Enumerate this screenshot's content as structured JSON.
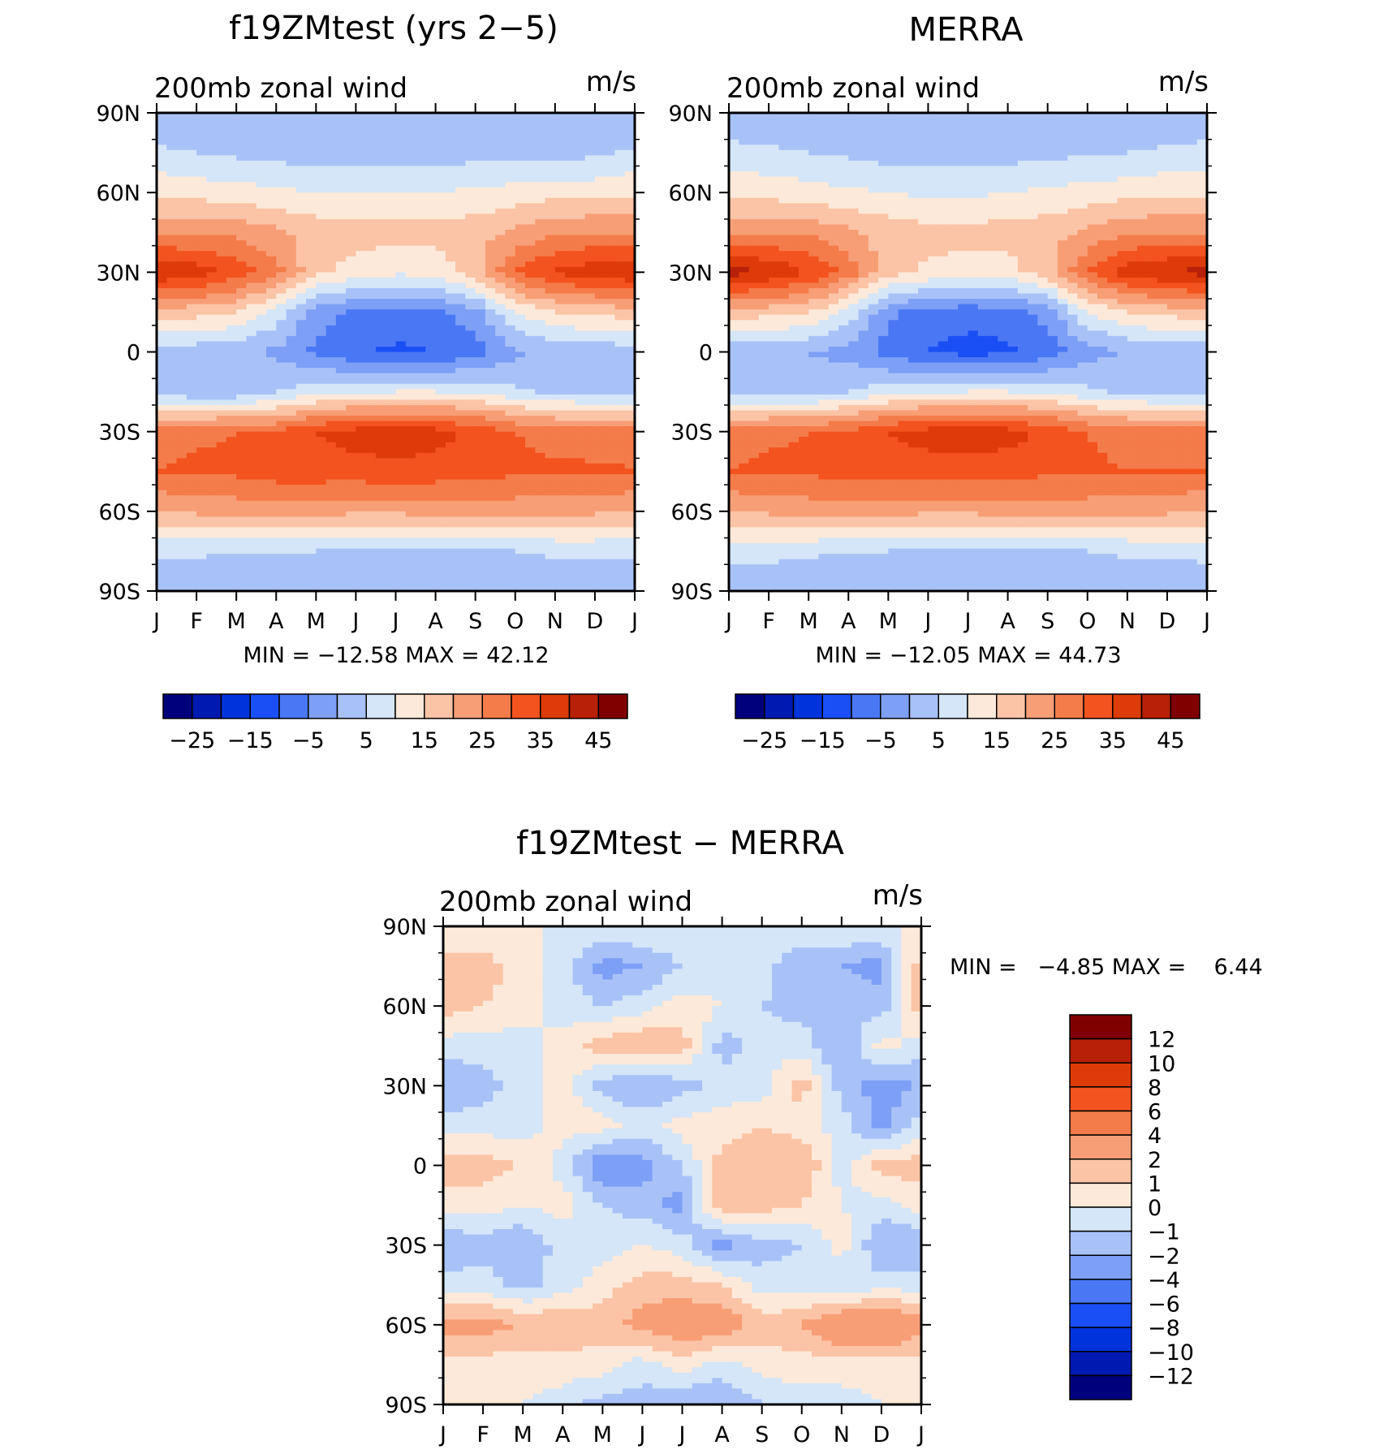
{
  "colors": {
    "seq": [
      "#00007d",
      "#0019b0",
      "#0033dc",
      "#1a4ff5",
      "#4a78f5",
      "#7d9ff5",
      "#a8c2f8",
      "#d4e6f8",
      "#fde9d9",
      "#fbc4a6",
      "#f89e76",
      "#f47b4a",
      "#f3531e",
      "#dd3b0a",
      "#b82008",
      "#800000"
    ],
    "diff": [
      "#00007d",
      "#0019b0",
      "#0033dc",
      "#1a4ff5",
      "#4a78f5",
      "#7d9ff5",
      "#a8c2f8",
      "#d4e6f8",
      "#fde9d9",
      "#fbc4a6",
      "#f89e76",
      "#f47b4a",
      "#f3531e",
      "#dd3b0a",
      "#b82008",
      "#800000"
    ]
  },
  "chart_data": [
    {
      "id": "model",
      "type": "heatmap",
      "title": "f19ZMtest (yrs 2−5)",
      "subtitle_left": "200mb zonal wind",
      "subtitle_right": "m/s",
      "x_categories": [
        "J",
        "F",
        "M",
        "A",
        "M",
        "J",
        "J",
        "A",
        "S",
        "O",
        "N",
        "D",
        "J"
      ],
      "y_ticks": [
        "90N",
        "60N",
        "30N",
        "0",
        "30S",
        "60S",
        "90S"
      ],
      "y_range": [
        90,
        -90
      ],
      "min": -12.58,
      "max": 42.12,
      "stats_label": "MIN = −12.58 MAX =   42.12",
      "colorbar_levels": [
        -30,
        -25,
        -20,
        -15,
        -10,
        -5,
        0,
        5,
        10,
        15,
        20,
        25,
        30,
        35,
        40,
        45
      ],
      "colorbar_labels": [
        "−25",
        "−15",
        "−5",
        "5",
        "15",
        "25",
        "35",
        "45"
      ],
      "field": {
        "lat_nodes": [
          90,
          75,
          60,
          45,
          30,
          15,
          0,
          -15,
          -30,
          -45,
          -60,
          -75,
          -90
        ],
        "columns": [
          [
            0,
            6,
            14,
            24,
            40,
            18,
            2,
            2,
            28,
            30,
            20,
            6,
            0
          ],
          [
            0,
            5,
            13,
            24,
            38,
            17,
            2,
            1,
            29,
            31,
            21,
            6,
            0
          ],
          [
            0,
            4,
            12,
            24,
            33,
            15,
            1,
            1,
            30,
            31,
            22,
            5,
            0
          ],
          [
            0,
            3,
            11,
            21,
            27,
            8,
            -1,
            5,
            30,
            33,
            22,
            5,
            0
          ],
          [
            0,
            2,
            10,
            18,
            16,
            -3,
            -6,
            8,
            35,
            33,
            22,
            5,
            0
          ],
          [
            0,
            2,
            10,
            17,
            13,
            -6,
            -9,
            9,
            37,
            33,
            21,
            4,
            0
          ],
          [
            0,
            2,
            10,
            17,
            11,
            -7,
            -11,
            10,
            38,
            34,
            21,
            4,
            0
          ],
          [
            0,
            2,
            10,
            17,
            12,
            -6,
            -10,
            10,
            37,
            33,
            22,
            4,
            0
          ],
          [
            0,
            3,
            11,
            18,
            18,
            -2,
            -7,
            9,
            34,
            32,
            22,
            4,
            0
          ],
          [
            0,
            3,
            12,
            21,
            30,
            10,
            -1,
            6,
            30,
            31,
            22,
            5,
            0
          ],
          [
            0,
            3,
            13,
            24,
            36,
            15,
            1,
            4,
            28,
            31,
            21,
            6,
            0
          ],
          [
            0,
            4,
            13,
            25,
            38,
            16,
            2,
            3,
            27,
            31,
            21,
            6,
            0
          ],
          [
            0,
            6,
            14,
            24,
            40,
            18,
            2,
            2,
            28,
            30,
            20,
            6,
            0
          ]
        ]
      }
    },
    {
      "id": "obs",
      "type": "heatmap",
      "title": "MERRA",
      "subtitle_left": "200mb zonal wind",
      "subtitle_right": "m/s",
      "x_categories": [
        "J",
        "F",
        "M",
        "A",
        "M",
        "J",
        "J",
        "A",
        "S",
        "O",
        "N",
        "D",
        "J"
      ],
      "y_ticks": [
        "90N",
        "60N",
        "30N",
        "0",
        "30S",
        "60S",
        "90S"
      ],
      "y_range": [
        90,
        -90
      ],
      "min": -12.05,
      "max": 44.73,
      "stats_label": "MIN = −12.05 MAX =   44.73",
      "colorbar_levels": [
        -30,
        -25,
        -20,
        -15,
        -10,
        -5,
        0,
        5,
        10,
        15,
        20,
        25,
        30,
        35,
        40,
        45
      ],
      "colorbar_labels": [
        "−25",
        "−15",
        "−5",
        "5",
        "15",
        "25",
        "35",
        "45"
      ],
      "field": {
        "lat_nodes": [
          90,
          75,
          60,
          45,
          30,
          15,
          0,
          -15,
          -30,
          -45,
          -60,
          -75,
          -90
        ],
        "columns": [
          [
            0,
            7,
            14,
            24,
            42,
            18,
            1,
            2,
            28,
            30,
            20,
            7,
            0
          ],
          [
            0,
            6,
            13,
            24,
            40,
            17,
            1,
            2,
            29,
            31,
            21,
            7,
            0
          ],
          [
            0,
            5,
            12,
            24,
            35,
            15,
            0,
            2,
            30,
            31,
            22,
            6,
            0
          ],
          [
            0,
            4,
            11,
            21,
            28,
            8,
            -2,
            5,
            31,
            32,
            22,
            5,
            0
          ],
          [
            0,
            3,
            10,
            18,
            17,
            -4,
            -7,
            8,
            35,
            32,
            22,
            5,
            0
          ],
          [
            0,
            3,
            9,
            17,
            14,
            -7,
            -10,
            9,
            37,
            33,
            21,
            4,
            0
          ],
          [
            0,
            3,
            9,
            17,
            12,
            -8,
            -12,
            10,
            38,
            33,
            21,
            4,
            0
          ],
          [
            0,
            3,
            10,
            17,
            13,
            -7,
            -11,
            10,
            37,
            32,
            22,
            4,
            0
          ],
          [
            0,
            4,
            11,
            18,
            18,
            -3,
            -8,
            9,
            34,
            31,
            22,
            4,
            0
          ],
          [
            0,
            4,
            12,
            21,
            30,
            10,
            -2,
            6,
            30,
            31,
            22,
            5,
            0
          ],
          [
            0,
            5,
            13,
            24,
            38,
            15,
            0,
            4,
            28,
            30,
            21,
            6,
            0
          ],
          [
            0,
            6,
            14,
            25,
            40,
            17,
            1,
            3,
            27,
            30,
            21,
            6,
            0
          ],
          [
            0,
            7,
            14,
            24,
            42,
            18,
            1,
            2,
            28,
            30,
            20,
            7,
            0
          ]
        ]
      }
    },
    {
      "id": "diff",
      "type": "heatmap",
      "title": "f19ZMtest − MERRA",
      "subtitle_left": "200mb zonal wind",
      "subtitle_right": "m/s",
      "x_categories": [
        "J",
        "F",
        "M",
        "A",
        "M",
        "J",
        "J",
        "A",
        "S",
        "O",
        "N",
        "D",
        "J"
      ],
      "y_ticks": [
        "90N",
        "60N",
        "30N",
        "0",
        "30S",
        "60S",
        "90S"
      ],
      "y_range": [
        90,
        -90
      ],
      "min": -4.85,
      "max": 6.44,
      "stats_label": "MIN =   −4.85 MAX =    6.44",
      "colorbar_levels": [
        -14,
        -12,
        -10,
        -8,
        -6,
        -4,
        -2,
        -1,
        0,
        1,
        2,
        4,
        6,
        8,
        10,
        12
      ],
      "colorbar_labels": [
        "12",
        "10",
        "8",
        "6",
        "4",
        "2",
        "1",
        "0",
        "−1",
        "−2",
        "−4",
        "−6",
        "−8",
        "−10",
        "−12"
      ],
      "field": {
        "lat_nodes": [
          90,
          75,
          60,
          45,
          30,
          15,
          0,
          -15,
          -30,
          -45,
          -60,
          -75,
          -90
        ],
        "columns": [
          [
            0,
            1.5,
            1.5,
            -0.5,
            -2,
            -0.5,
            1.5,
            0.5,
            -2,
            -0.5,
            2.5,
            0.5,
            0
          ],
          [
            0,
            1.5,
            1,
            -0.5,
            -1.5,
            -0.5,
            1.5,
            0.5,
            -1.5,
            -0.5,
            2.5,
            0.5,
            0
          ],
          [
            0,
            0.5,
            0.5,
            -0.5,
            -0.5,
            -0.5,
            1,
            0,
            -2,
            -1.5,
            2,
            0.5,
            0
          ],
          [
            0,
            -0.5,
            -0.5,
            0.5,
            0.5,
            0.5,
            -0.5,
            0.5,
            -0.5,
            -0.5,
            2,
            0.5,
            -0.5
          ],
          [
            0,
            -2.5,
            -1,
            1.5,
            -1.5,
            0.5,
            -3,
            -1,
            -0.5,
            0.5,
            1.5,
            0.5,
            -1.5
          ],
          [
            0,
            -2,
            -0.5,
            2,
            -2,
            -0.5,
            -2.5,
            -1.5,
            0,
            1.5,
            2.5,
            -0.5,
            -1.5
          ],
          [
            0,
            -1,
            0.5,
            1.5,
            -1.5,
            0.5,
            -1,
            -2.5,
            -0.5,
            1.5,
            3,
            0.5,
            -2
          ],
          [
            0,
            -0.5,
            0,
            -1.5,
            -0.5,
            0.5,
            1.5,
            2,
            -2.5,
            1,
            3,
            -0.5,
            -2
          ],
          [
            0,
            -0.5,
            -1,
            -0.5,
            -0.5,
            1,
            2,
            1.5,
            -1.5,
            -0.5,
            1.5,
            0.5,
            -1
          ],
          [
            0,
            -2,
            -1.5,
            -0.5,
            1.5,
            0.5,
            2,
            1,
            -1,
            -0.5,
            2,
            0.5,
            -0.5
          ],
          [
            0,
            -2,
            -1,
            -2,
            -1.5,
            -0.5,
            -0.5,
            0,
            0.5,
            -1,
            3.5,
            0.5,
            -0.5
          ],
          [
            0,
            -2.5,
            -1.5,
            0.5,
            -2.5,
            -2.5,
            1.5,
            -0.5,
            -2,
            -0.5,
            4,
            0.5,
            0
          ],
          [
            0,
            1.5,
            1.5,
            -0.5,
            -2,
            -0.5,
            1.5,
            0.5,
            -2,
            -0.5,
            2.5,
            0.5,
            0
          ]
        ]
      }
    }
  ]
}
